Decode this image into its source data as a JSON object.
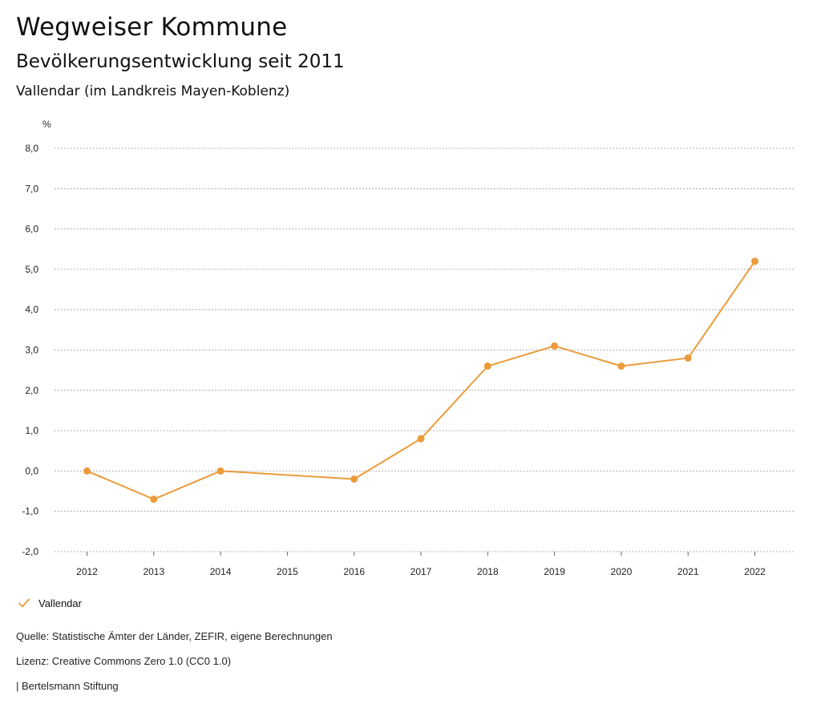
{
  "header": {
    "title": "Wegweiser Kommune",
    "subtitle": "Bevölkerungsentwicklung seit 2011",
    "region": "Vallendar (im Landkreis Mayen-Koblenz)"
  },
  "legend": {
    "label": "Vallendar",
    "color": "#EB9B3A",
    "icon": "check-icon"
  },
  "footer": {
    "source": "Quelle: Statistische Ämter der Länder, ZEFIR, eigene Berechnungen",
    "license": "Lizenz: Creative Commons Zero 1.0 (CC0 1.0)",
    "publisher": "| Bertelsmann Stiftung"
  },
  "chart_data": {
    "type": "line",
    "ylabel": "%",
    "ylim": [
      -2.0,
      8.0
    ],
    "yticks": [
      "-2,0",
      "-1,0",
      "0,0",
      "1,0",
      "2,0",
      "3,0",
      "4,0",
      "5,0",
      "6,0",
      "7,0",
      "8,0"
    ],
    "categories": [
      "2012",
      "2013",
      "2014",
      "2015",
      "2016",
      "2017",
      "2018",
      "2019",
      "2020",
      "2021",
      "2022"
    ],
    "series": [
      {
        "name": "Vallendar",
        "color": "#EB9B3A",
        "points": [
          {
            "x": "2012",
            "y": 0.0
          },
          {
            "x": "2013",
            "y": -0.7
          },
          {
            "x": "2014",
            "y": 0.0
          },
          {
            "x": "2016",
            "y": -0.2
          },
          {
            "x": "2017",
            "y": 0.8
          },
          {
            "x": "2018",
            "y": 2.6
          },
          {
            "x": "2019",
            "y": 3.1
          },
          {
            "x": "2020",
            "y": 2.6
          },
          {
            "x": "2021",
            "y": 2.8
          },
          {
            "x": "2022",
            "y": 5.2
          }
        ]
      }
    ],
    "grid": true,
    "grid_style": "dotted",
    "legend_position": "bottom-left"
  }
}
